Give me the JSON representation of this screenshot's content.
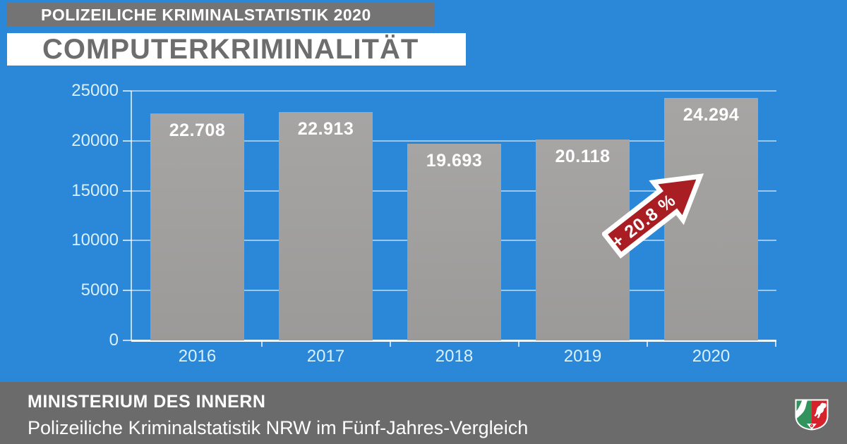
{
  "header": {
    "kicker": "POLIZEILICHE KRIMINALSTATISTIK 2020",
    "title": "COMPUTERKRIMINALITÄT"
  },
  "chart_data": {
    "type": "bar",
    "title": "Computerkriminalität",
    "categories": [
      "2016",
      "2017",
      "2018",
      "2019",
      "2020"
    ],
    "values": [
      22708,
      22913,
      19693,
      20118,
      24294
    ],
    "value_labels": [
      "22.708",
      "22.913",
      "19.693",
      "20.118",
      "24.294"
    ],
    "y_ticks": [
      0,
      5000,
      10000,
      15000,
      20000,
      25000
    ],
    "y_tick_labels": [
      "0",
      "5000",
      "10000",
      "15000",
      "20000",
      "25000"
    ],
    "ylim": [
      0,
      25000
    ],
    "xlabel": "",
    "ylabel": "",
    "grid": true,
    "legend": "none",
    "annotation": "+ 20.8 %"
  },
  "footer": {
    "title": "MINISTERIUM DES INNERN",
    "subtitle": "Polizeiliche Kriminalstatistik NRW im Fünf-Jahres-Vergleich",
    "logo_icon": "nrw-coat-of-arms"
  },
  "theme": {
    "bg": "#2b87d8",
    "banner_bg": "#757474",
    "banner_text": "#ffffff",
    "title_bg": "#ffffff",
    "title_text": "#6e6d6d",
    "bar": "#a6a5a4",
    "grid": "#ffffff8a",
    "axis_bright": "#eafaff",
    "axis_label": "#d9f1fd",
    "value_label": "#ffffff",
    "arrow": "#a91e22",
    "footer_bg": "#6b6b6b",
    "footer_text": "#ffffff",
    "shield_green": "#31945c",
    "shield_red": "#d5232c"
  }
}
